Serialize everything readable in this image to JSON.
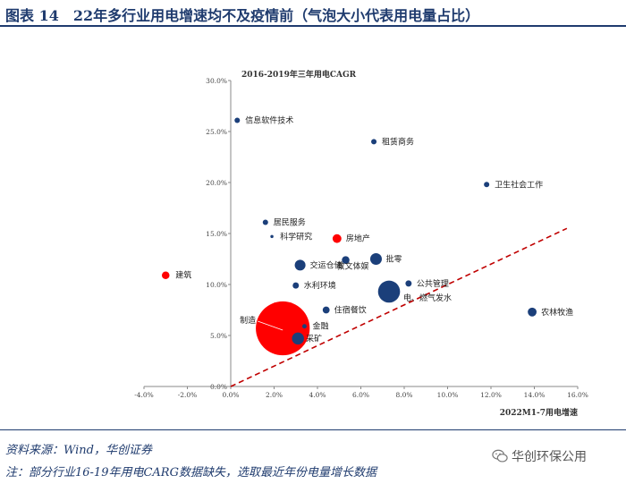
{
  "title": "图表 14　22年多行业用电增速均不及疫情前（气泡大小代表用电量占比）",
  "source_note": "资料来源：Wind，华创证券",
  "footnote": "注：部分行业16-19年用电CARG数据缺失，选取最近年份电量增长数据",
  "watermark": "华创环保公用",
  "colors": {
    "navy": "#1b3f7a",
    "red": "#ff0000",
    "title": "#1f3b6e"
  },
  "chart_data": {
    "type": "scatter",
    "subtype": "bubble",
    "title": "",
    "xlabel": "2022M1-7用电增速",
    "ylabel": "2016-2019年三年用电CAGR",
    "xlim": [
      -0.04,
      0.16
    ],
    "ylim": [
      0.0,
      0.3
    ],
    "xticks": [
      "-4.0%",
      "-2.0%",
      "0.0%",
      "2.0%",
      "4.0%",
      "6.0%",
      "8.0%",
      "10.0%",
      "12.0%",
      "14.0%",
      "16.0%"
    ],
    "yticks": [
      "0.0%",
      "5.0%",
      "10.0%",
      "15.0%",
      "20.0%",
      "25.0%",
      "30.0%"
    ],
    "reference_line": {
      "style": "dashed",
      "color": "#c00000",
      "from": [
        0.0,
        0.0
      ],
      "to": [
        0.155,
        0.155
      ]
    },
    "points": [
      {
        "name": "信息软件技术",
        "x": 0.003,
        "y": 0.261,
        "size": 0.3,
        "color": "#1b3f7a"
      },
      {
        "name": "租赁商务",
        "x": 0.066,
        "y": 0.24,
        "size": 0.3,
        "color": "#1b3f7a"
      },
      {
        "name": "卫生社会工作",
        "x": 0.118,
        "y": 0.198,
        "size": 0.3,
        "color": "#1b3f7a"
      },
      {
        "name": "居民服务",
        "x": 0.016,
        "y": 0.161,
        "size": 0.3,
        "color": "#1b3f7a"
      },
      {
        "name": "科学研究",
        "x": 0.019,
        "y": 0.147,
        "size": 0.1,
        "color": "#1b3f7a"
      },
      {
        "name": "房地产",
        "x": 0.049,
        "y": 0.145,
        "size": 0.8,
        "color": "#ff0000"
      },
      {
        "name": "建筑",
        "x": -0.03,
        "y": 0.109,
        "size": 0.6,
        "color": "#ff0000"
      },
      {
        "name": "交运仓储",
        "x": 0.032,
        "y": 0.119,
        "size": 1.2,
        "color": "#1b3f7a"
      },
      {
        "name": "教文体娱",
        "x": 0.053,
        "y": 0.124,
        "size": 0.6,
        "color": "#1b3f7a"
      },
      {
        "name": "批零",
        "x": 0.067,
        "y": 0.125,
        "size": 1.4,
        "color": "#1b3f7a"
      },
      {
        "name": "水利环境",
        "x": 0.03,
        "y": 0.099,
        "size": 0.4,
        "color": "#1b3f7a"
      },
      {
        "name": "公共管理",
        "x": 0.082,
        "y": 0.101,
        "size": 0.4,
        "color": "#1b3f7a"
      },
      {
        "name": "电、燃气发水",
        "x": 0.073,
        "y": 0.093,
        "size": 5.0,
        "color": "#1b3f7a"
      },
      {
        "name": "住宿餐饮",
        "x": 0.044,
        "y": 0.075,
        "size": 0.5,
        "color": "#1b3f7a"
      },
      {
        "name": "农林牧渔",
        "x": 0.139,
        "y": 0.073,
        "size": 0.8,
        "color": "#1b3f7a"
      },
      {
        "name": "制造",
        "x": 0.024,
        "y": 0.057,
        "size": 30.0,
        "color": "#ff0000"
      },
      {
        "name": "金融",
        "x": 0.034,
        "y": 0.059,
        "size": 0.2,
        "color": "#1b3f7a"
      },
      {
        "name": "采矿",
        "x": 0.031,
        "y": 0.047,
        "size": 1.5,
        "color": "#1b3f7a"
      }
    ]
  }
}
